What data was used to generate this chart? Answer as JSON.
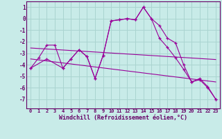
{
  "xlabel": "Windchill (Refroidissement éolien,°C)",
  "bg_color": "#c8ebe8",
  "grid_color": "#aad4d0",
  "line_color": "#990099",
  "spine_color": "#660066",
  "x_ticks": [
    0,
    1,
    2,
    3,
    4,
    5,
    6,
    7,
    8,
    9,
    10,
    11,
    12,
    13,
    14,
    15,
    16,
    17,
    18,
    19,
    20,
    21,
    22,
    23
  ],
  "y_ticks": [
    -7,
    -6,
    -5,
    -4,
    -3,
    -2,
    -1,
    0,
    1
  ],
  "xlim": [
    -0.5,
    23.5
  ],
  "ylim": [
    -7.8,
    1.5
  ],
  "series1_x": [
    0,
    1,
    2,
    3,
    4,
    5,
    6,
    7,
    8,
    9,
    10,
    11,
    12,
    13,
    14,
    15,
    16,
    17,
    18,
    19,
    20,
    21,
    22,
    23
  ],
  "series1_y": [
    -4.3,
    -3.4,
    -2.3,
    -2.3,
    -4.3,
    -3.5,
    -2.7,
    -3.3,
    -5.2,
    -3.2,
    -0.2,
    -0.1,
    0.0,
    -0.1,
    1.0,
    0.0,
    -0.6,
    -1.7,
    -2.1,
    -4.0,
    -5.5,
    -5.2,
    -5.9,
    -7.0
  ],
  "series2_x": [
    0,
    2,
    4,
    5,
    6,
    7,
    8,
    9,
    10,
    11,
    12,
    13,
    14,
    15,
    16,
    17,
    18,
    19,
    20,
    21,
    22,
    23
  ],
  "series2_y": [
    -4.3,
    -3.5,
    -4.3,
    -3.5,
    -2.7,
    -3.3,
    -5.2,
    -3.2,
    -0.2,
    -0.1,
    0.0,
    -0.1,
    1.0,
    0.0,
    -1.7,
    -2.5,
    -3.4,
    -4.4,
    -5.5,
    -5.3,
    -6.0,
    -7.0
  ],
  "trend1_x": [
    0,
    23
  ],
  "trend1_y": [
    -2.55,
    -3.55
  ],
  "trend2_x": [
    0,
    23
  ],
  "trend2_y": [
    -3.5,
    -5.5
  ]
}
